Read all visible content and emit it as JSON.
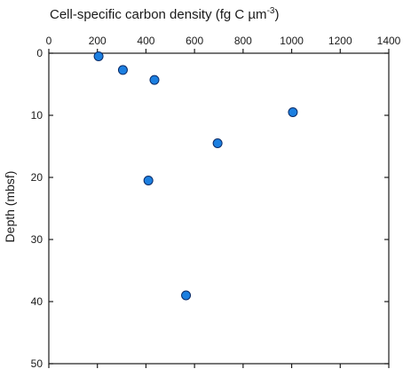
{
  "chart_data": {
    "type": "scatter",
    "title": "Cell-specific carbon density (fg C µm",
    "title_superscript": "-3",
    "title_suffix": ")",
    "xlabel": "",
    "ylabel": "Depth (mbsf)",
    "x_axis_position": "top",
    "y_axis_inverted": true,
    "xlim": [
      0,
      1400
    ],
    "ylim": [
      0,
      50
    ],
    "x_ticks": [
      0,
      200,
      400,
      600,
      800,
      1000,
      1200,
      1400
    ],
    "y_ticks": [
      0,
      10,
      20,
      30,
      40,
      50
    ],
    "grid": false,
    "marker_color": "#1c7fe0",
    "points": [
      {
        "x": 205,
        "y": 0.5
      },
      {
        "x": 305,
        "y": 2.7
      },
      {
        "x": 435,
        "y": 4.3
      },
      {
        "x": 1005,
        "y": 9.5
      },
      {
        "x": 695,
        "y": 14.5
      },
      {
        "x": 410,
        "y": 20.5
      },
      {
        "x": 565,
        "y": 39
      }
    ]
  }
}
